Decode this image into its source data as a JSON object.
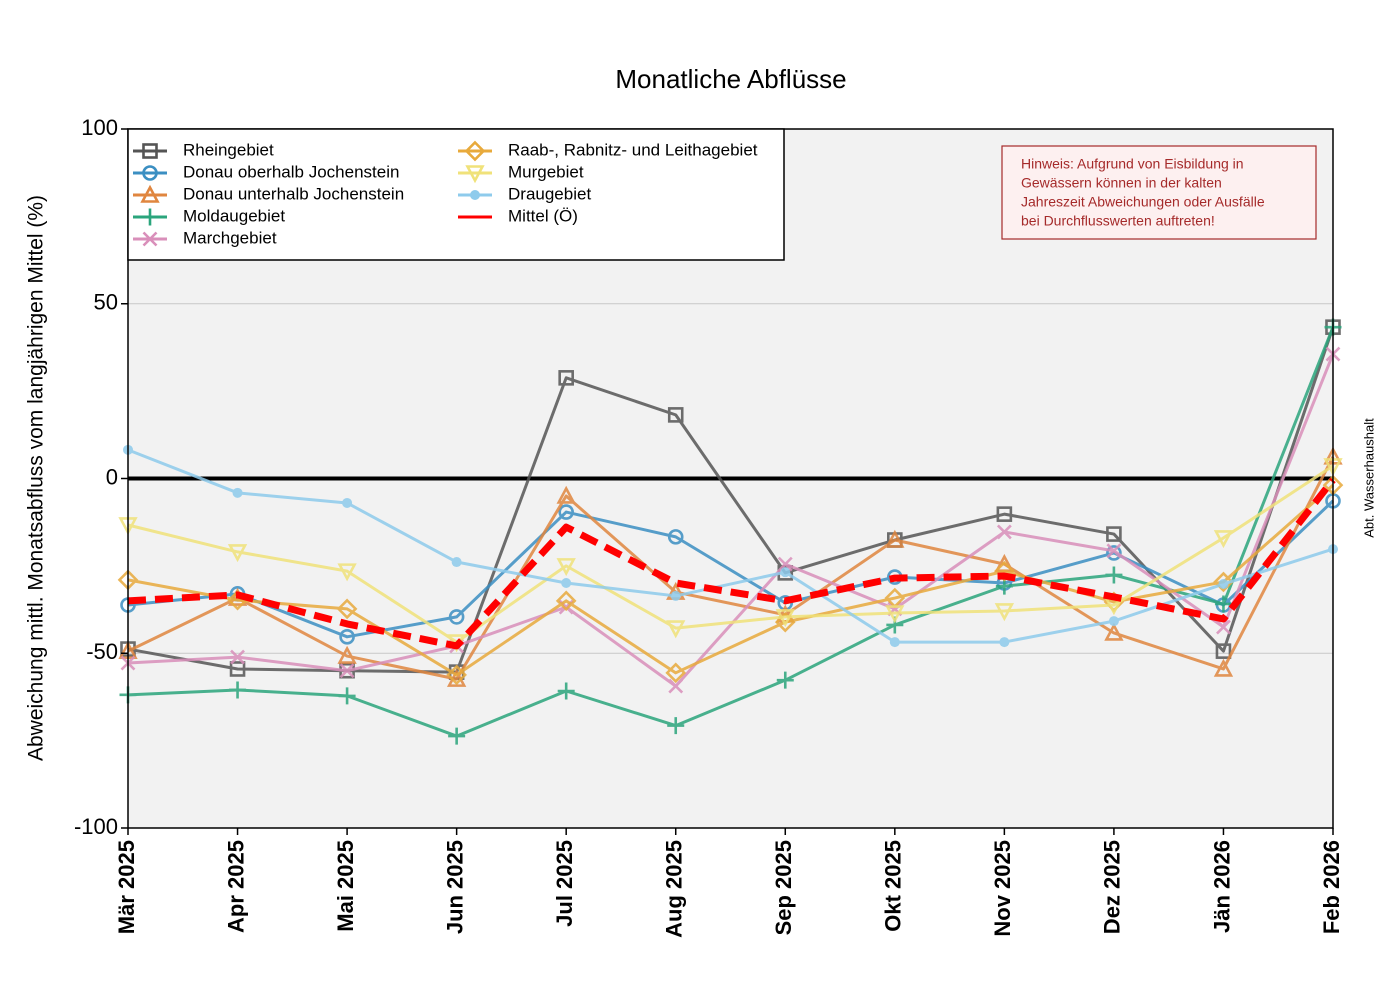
{
  "chart_data": {
    "type": "line",
    "title": "Monatliche Abflüsse",
    "ylabel": "Abweichung mittl. Monatsabfluss vom langjährigen Mittel (%)",
    "side_note": "Abt. Wasserhaushalt",
    "note": [
      "Hinweis: Aufgrund von Eisbildung in",
      "Gewässern können in der kalten",
      "Jahreszeit Abweichungen oder Ausfälle",
      "bei Durchflusswerten auftreten!"
    ],
    "categories": [
      "Mär 2025",
      "Apr 2025",
      "Mai 2025",
      "Jun 2025",
      "Jul 2025",
      "Aug 2025",
      "Sep 2025",
      "Okt 2025",
      "Nov 2025",
      "Dez 2025",
      "Jän 2026",
      "Feb 2026"
    ],
    "ylim": [
      -100,
      100
    ],
    "yticks": [
      -100,
      -50,
      0,
      50,
      100
    ],
    "grid": true,
    "legend": "upper left",
    "series": [
      {
        "name": "Rheingebiet",
        "color": "#555555",
        "marker": "square",
        "values": [
          -48.8,
          -54.5,
          -55,
          -55.4,
          28.8,
          18.2,
          -27,
          -17.6,
          -10.2,
          -15.9,
          -49.4,
          43.3
        ]
      },
      {
        "name": "Donau oberhalb Jochenstein",
        "color": "#3b8fc2",
        "marker": "circle",
        "values": [
          -36.2,
          -33,
          -45.3,
          -39.6,
          -9.6,
          -16.7,
          -35.6,
          -28.2,
          -29.9,
          -21.3,
          -36.2,
          -6.4
        ]
      },
      {
        "name": "Donau unterhalb Jochenstein",
        "color": "#e0863f",
        "marker": "triangle-up",
        "values": [
          -49.4,
          -34.2,
          -50.8,
          -57.4,
          -5,
          -32.5,
          -39,
          -17.6,
          -24.5,
          -44.2,
          -54.5,
          6.2
        ]
      },
      {
        "name": "Moldaugebiet",
        "color": "#2ba57c",
        "marker": "plus",
        "values": [
          -61.9,
          -60.5,
          -62.2,
          -73.7,
          -60.8,
          -70.7,
          -57.7,
          -41.9,
          -30.8,
          -27.6,
          -35.9,
          43.3
        ]
      },
      {
        "name": "Marchgebiet",
        "color": "#d98fba",
        "marker": "x",
        "values": [
          -52.8,
          -51.1,
          -55,
          -47.9,
          -36.8,
          -59.4,
          -24.5,
          -37.3,
          -15.3,
          -20.7,
          -42.5,
          35.6
        ]
      },
      {
        "name": "Raab-, Rabnitz- und Leithagebiet",
        "color": "#e8aa3c",
        "marker": "diamond",
        "values": [
          -29,
          -34.8,
          -37.3,
          -56.2,
          -35,
          -55.6,
          -41.1,
          -34.2,
          -26.5,
          -35.3,
          -29.6,
          -1.9
        ]
      },
      {
        "name": "Murgebiet",
        "color": "#f0e27a",
        "marker": "triangle-down",
        "values": [
          -13.3,
          -21,
          -26.5,
          -46.8,
          -25,
          -42.8,
          -39.6,
          -38.5,
          -37.9,
          -36.2,
          -17,
          3.6
        ]
      },
      {
        "name": "Draugebiet",
        "color": "#8ecbec",
        "marker": "dot",
        "values": [
          8.2,
          -4.1,
          -7,
          -23.9,
          -29.9,
          -33.6,
          -26.8,
          -46.8,
          -46.8,
          -40.8,
          -30.2,
          -20.2
        ]
      },
      {
        "name": "Mittel (Ö)",
        "color": "#ff0000",
        "marker": "none",
        "dashed": true,
        "values": [
          -35,
          -33.3,
          -41.6,
          -47.9,
          -13.9,
          -29.9,
          -35,
          -28.5,
          -27.9,
          -33.9,
          -40.2,
          -0.4
        ]
      }
    ]
  }
}
